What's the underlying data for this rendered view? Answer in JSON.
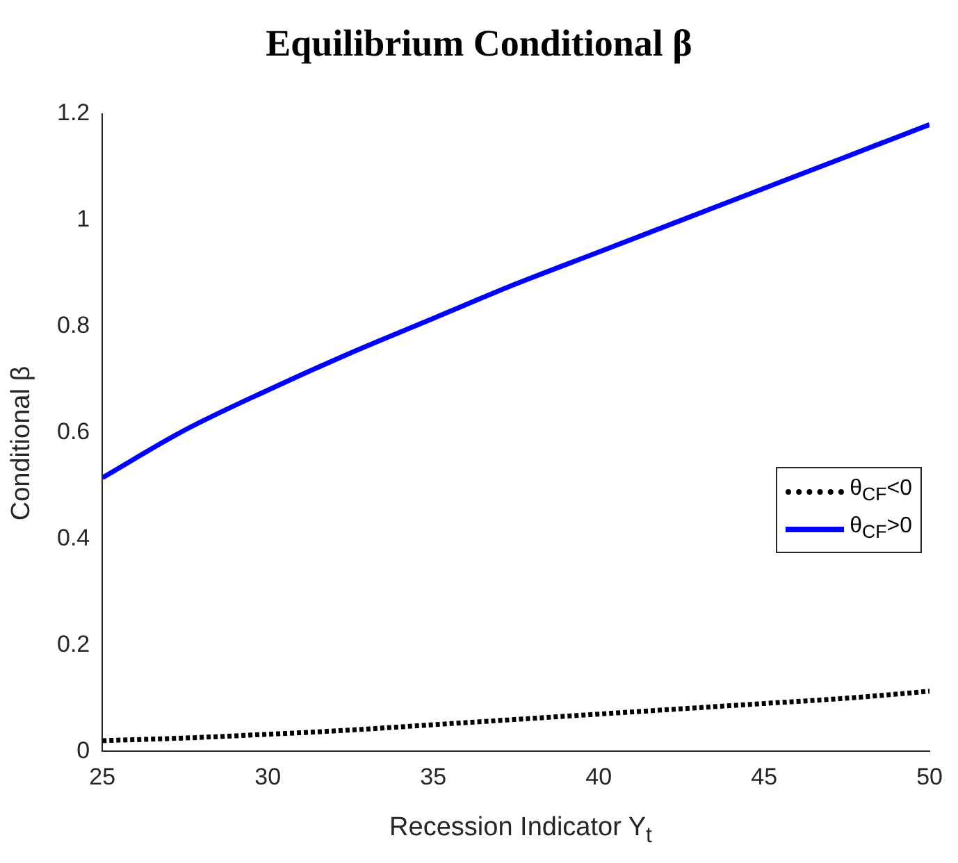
{
  "chart_data": {
    "type": "line",
    "title": "Equilibrium Conditional β",
    "xlabel": "Recession Indicator Y$_{t}$",
    "ylabel": "Conditional β",
    "xlim": [
      25,
      50
    ],
    "xticks": [
      25,
      30,
      35,
      40,
      45,
      50
    ],
    "ylim": [
      0,
      1.2
    ],
    "yticks": [
      0,
      0.2,
      0.4,
      0.6,
      0.8,
      1,
      1.2
    ],
    "x": [
      25,
      27.5,
      30,
      32.5,
      35,
      37.5,
      40,
      42.5,
      45,
      47.5,
      50
    ],
    "series": [
      {
        "name": "θ$_{CF}$<0",
        "color": "#000000",
        "line_style": "dotted",
        "values": [
          0.02,
          0.025,
          0.032,
          0.04,
          0.05,
          0.06,
          0.07,
          0.08,
          0.09,
          0.1,
          0.113
        ]
      },
      {
        "name": "θ$_{CF}$>0",
        "color": "#0000ff",
        "line_style": "solid",
        "values": [
          0.515,
          0.605,
          0.68,
          0.75,
          0.815,
          0.88,
          0.94,
          1.0,
          1.06,
          1.12,
          1.18
        ]
      }
    ],
    "grid": false,
    "legend": "right",
    "marker": "none"
  }
}
